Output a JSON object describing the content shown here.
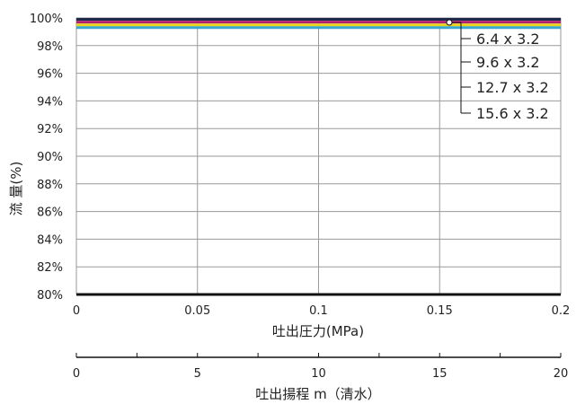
{
  "chart_data": {
    "type": "line",
    "xlabel": "吐出圧力(MPa)",
    "ylabel": "流 量(%)",
    "x": [
      0,
      0.2
    ],
    "xlim": [
      0,
      0.2
    ],
    "ylim": [
      80,
      100
    ],
    "x_ticks": [
      0,
      0.05,
      0.1,
      0.15,
      0.2
    ],
    "x_tick_labels": [
      "0",
      "0.05",
      "0.1",
      "0.15",
      "0.2"
    ],
    "y_ticks": [
      80,
      82,
      84,
      86,
      88,
      90,
      92,
      94,
      96,
      98,
      100
    ],
    "y_tick_labels": [
      "80%",
      "82%",
      "84%",
      "86%",
      "88%",
      "90%",
      "92%",
      "94%",
      "96%",
      "98%",
      "100%"
    ],
    "grid": true,
    "legend_placement": "top-right",
    "series": [
      {
        "name": "6.4 x 3.2",
        "values": [
          99.9,
          99.9
        ],
        "color": "#1f2a4a"
      },
      {
        "name": "9.6 x 3.2",
        "values": [
          99.7,
          99.7
        ],
        "color": "#b0206e"
      },
      {
        "name": "12.7 x 3.2",
        "values": [
          99.5,
          99.5
        ],
        "color": "#e8d21a"
      },
      {
        "name": "15.6 x 3.2",
        "values": [
          99.3,
          99.3
        ],
        "color": "#3aa7cf"
      }
    ],
    "secondary_axis": {
      "label": "吐出揚程 m（清水）",
      "xlim": [
        0,
        20
      ],
      "ticks": [
        0,
        5,
        10,
        15,
        20
      ],
      "tick_labels": [
        "0",
        "5",
        "10",
        "15",
        "20"
      ]
    }
  }
}
